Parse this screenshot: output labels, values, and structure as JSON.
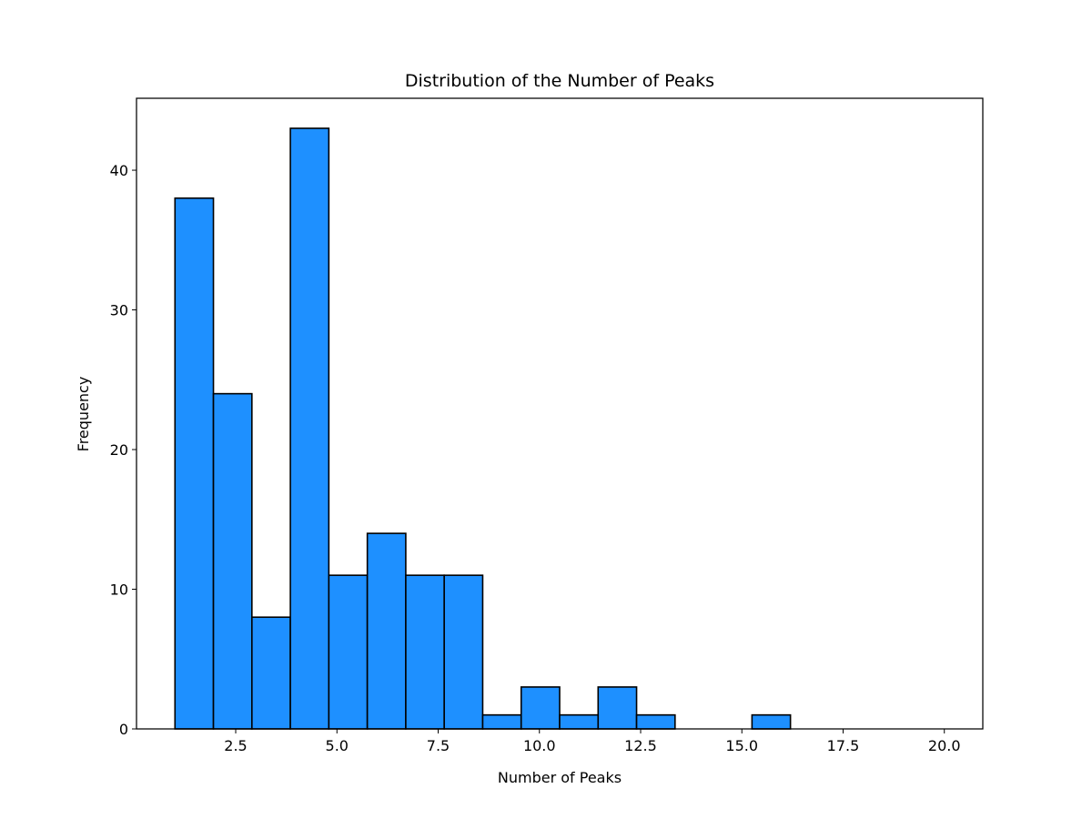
{
  "chart_data": {
    "type": "bar",
    "title": "Distribution of the Number of Peaks",
    "xlabel": "Number of Peaks",
    "ylabel": "Frequency",
    "bins": [
      [
        1.0,
        1.95
      ],
      [
        1.95,
        2.9
      ],
      [
        2.9,
        3.85
      ],
      [
        3.85,
        4.8
      ],
      [
        4.8,
        5.75
      ],
      [
        5.75,
        6.7
      ],
      [
        6.7,
        7.65
      ],
      [
        7.65,
        8.6
      ],
      [
        8.6,
        9.55
      ],
      [
        9.55,
        10.5
      ],
      [
        10.5,
        11.45
      ],
      [
        11.45,
        12.4
      ],
      [
        12.4,
        13.35
      ],
      [
        13.35,
        14.3
      ],
      [
        14.3,
        15.25
      ],
      [
        15.25,
        16.2
      ],
      [
        16.2,
        17.15
      ],
      [
        17.15,
        18.1
      ],
      [
        18.1,
        19.05
      ],
      [
        19.05,
        20.0
      ]
    ],
    "values": [
      38,
      24,
      8,
      43,
      11,
      14,
      11,
      11,
      1,
      3,
      1,
      3,
      1,
      0,
      0,
      1,
      0,
      0,
      0,
      0
    ],
    "xlim": [
      0.05,
      20.95
    ],
    "ylim": [
      0,
      45.15
    ],
    "xticks": [
      2.5,
      5.0,
      7.5,
      10.0,
      12.5,
      15.0,
      17.5,
      20.0
    ],
    "xtick_labels": [
      "2.5",
      "5.0",
      "7.5",
      "10.0",
      "12.5",
      "15.0",
      "17.5",
      "20.0"
    ],
    "yticks": [
      0,
      10,
      20,
      30,
      40
    ],
    "ytick_labels": [
      "0",
      "10",
      "20",
      "30",
      "40"
    ],
    "grid": false,
    "bar_color": "#1e90ff",
    "edge_color": "#000000"
  }
}
